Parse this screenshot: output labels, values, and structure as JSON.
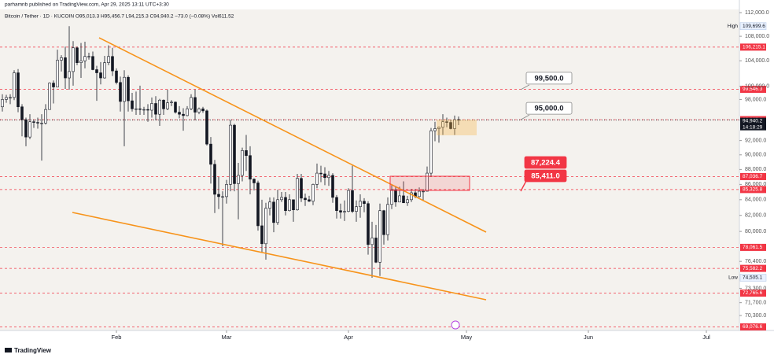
{
  "header": {
    "publisher": "parhamnb published on TradingView.com, Apr 29, 2025 13:11 UTC+3:30",
    "symbol_line": "Bitcoin / Tether · 1D · KUCOIN  O95,013.3 H95,456.7 L94,215.3 C94,940.2 −73.0 (−0.08%) Vol611.52"
  },
  "footer": {
    "brand": "TradingView"
  },
  "chart_data": {
    "type": "candlestick",
    "log_scale": true,
    "up_color": "#ffffff",
    "down_color": "#131722",
    "xlim": [
      -0.6,
      187.4
    ],
    "ylim": [
      68700,
      112550
    ],
    "xticks": [
      {
        "value": 29,
        "label": "Feb"
      },
      {
        "value": 57,
        "label": "Mar"
      },
      {
        "value": 88,
        "label": "Apr"
      },
      {
        "value": 118,
        "label": "May"
      },
      {
        "value": 149,
        "label": "Jun"
      },
      {
        "value": 179,
        "label": "Jul"
      }
    ],
    "yticks": [
      {
        "value": 112000,
        "label": "112,000.0"
      },
      {
        "value": 108000,
        "label": "108,000.0"
      },
      {
        "value": 104000,
        "label": "104,000.0"
      },
      {
        "value": 100000,
        "label": "100,000.0"
      },
      {
        "value": 98000,
        "label": "98,000.0"
      },
      {
        "value": 92000,
        "label": "92,000.0"
      },
      {
        "value": 90000,
        "label": "90,000.0"
      },
      {
        "value": 88000,
        "label": "88,000.0"
      },
      {
        "value": 86000,
        "label": "86,000.0"
      },
      {
        "value": 84000,
        "label": "84,000.0"
      },
      {
        "value": 82000,
        "label": "82,000.0"
      },
      {
        "value": 80000,
        "label": "80,000.0"
      },
      {
        "value": 76400,
        "label": "76,400.0"
      },
      {
        "value": 73300,
        "label": "73,300.0"
      },
      {
        "value": 71700,
        "label": "71,700.0"
      },
      {
        "value": 70300,
        "label": "70,300.0"
      }
    ],
    "high": {
      "name": "High",
      "value": 109699.6,
      "label": "109,699.6"
    },
    "low": {
      "name": "Low",
      "value": 74505.1,
      "label": "74,505.1"
    },
    "price_lines": [
      {
        "value": 106215.1,
        "label": "106,215.1",
        "color": "#f23645"
      },
      {
        "value": 99546.3,
        "label": "99,546.3",
        "color": "#f23645"
      },
      {
        "value": 95007.2,
        "label": "95,007.2",
        "color": "#f23645"
      },
      {
        "value": 87036.7,
        "label": "87,036.7",
        "color": "#f23645"
      },
      {
        "value": 85325.8,
        "label": "85,325.8",
        "color": "#f23645"
      },
      {
        "value": 78061.5,
        "label": "78,061.5",
        "color": "#f23645"
      },
      {
        "value": 75582.2,
        "label": "75,582.2",
        "color": "#f23645"
      },
      {
        "value": 72765.6,
        "label": "72,765.6",
        "color": "#f23645"
      },
      {
        "value": 69076.6,
        "label": "69,076.6",
        "color": "#f23645"
      }
    ],
    "last_price": {
      "value": 94940.2,
      "label": "94,940.2",
      "countdown": "14:18:29",
      "color": "#131722"
    },
    "annotations": [
      {
        "value": 99500,
        "label": "99,500.0",
        "color": "#ffffff"
      },
      {
        "value": 95000,
        "label": "95,000.0",
        "color": "#ffffff"
      },
      {
        "value": 87224.4,
        "label": "87,224.4",
        "color": "#f23645"
      },
      {
        "value": 85411,
        "label": "85,411.0",
        "color": "#f23645"
      }
    ],
    "candles": [
      [
        96900,
        98800,
        96200,
        98000
      ],
      [
        98000,
        98700,
        97500,
        98300
      ],
      [
        98300,
        98800,
        97300,
        98300
      ],
      [
        98300,
        102500,
        97900,
        102100
      ],
      [
        102100,
        102700,
        96100,
        96900
      ],
      [
        96900,
        97300,
        92600,
        95000
      ],
      [
        95000,
        95300,
        91200,
        92500
      ],
      [
        92500,
        95800,
        92200,
        94700
      ],
      [
        94700,
        95000,
        93800,
        94600
      ],
      [
        94600,
        95300,
        93700,
        94500
      ],
      [
        94500,
        95800,
        89200,
        94500
      ],
      [
        94500,
        97300,
        94300,
        96500
      ],
      [
        96500,
        100600,
        96500,
        100500
      ],
      [
        100500,
        100900,
        97400,
        99900
      ],
      [
        99900,
        105800,
        99900,
        104100
      ],
      [
        104100,
        104900,
        102300,
        104500
      ],
      [
        104500,
        106300,
        99600,
        101300
      ],
      [
        101300,
        109700,
        99500,
        102300
      ],
      [
        102300,
        107200,
        100100,
        106100
      ],
      [
        106100,
        106300,
        103300,
        103700
      ],
      [
        103700,
        106900,
        101300,
        104000
      ],
      [
        104000,
        107100,
        102800,
        104700
      ],
      [
        104700,
        105300,
        104200,
        104700
      ],
      [
        104700,
        105500,
        102500,
        102600
      ],
      [
        102600,
        103200,
        97800,
        102100
      ],
      [
        102100,
        103800,
        100300,
        101300
      ],
      [
        101300,
        104800,
        101200,
        103700
      ],
      [
        103700,
        106500,
        103300,
        104700
      ],
      [
        104700,
        106100,
        101600,
        102400
      ],
      [
        102400,
        102800,
        100300,
        100600
      ],
      [
        100600,
        101500,
        96200,
        97700
      ],
      [
        97700,
        102500,
        91200,
        101400
      ],
      [
        101400,
        101700,
        96200,
        97800
      ],
      [
        97800,
        99000,
        96200,
        96600
      ],
      [
        96600,
        99200,
        95700,
        96600
      ],
      [
        96600,
        100100,
        95700,
        96500
      ],
      [
        96500,
        96900,
        95700,
        96500
      ],
      [
        96500,
        97300,
        94700,
        96400
      ],
      [
        96400,
        98300,
        95300,
        97400
      ],
      [
        97400,
        98500,
        94900,
        95800
      ],
      [
        95800,
        98100,
        94100,
        97900
      ],
      [
        97900,
        98000,
        95700,
        96600
      ],
      [
        96600,
        99500,
        96400,
        97500
      ],
      [
        97500,
        97900,
        97000,
        97600
      ],
      [
        97600,
        97700,
        95900,
        96100
      ],
      [
        96100,
        97000,
        95200,
        95800
      ],
      [
        95800,
        96700,
        93400,
        95600
      ],
      [
        95600,
        97000,
        95500,
        96600
      ],
      [
        96600,
        98800,
        96400,
        98300
      ],
      [
        98300,
        99500,
        94900,
        96100
      ],
      [
        96100,
        96800,
        95800,
        96600
      ],
      [
        96600,
        96900,
        96000,
        96300
      ],
      [
        96300,
        96500,
        91300,
        91500
      ],
      [
        91500,
        92500,
        86100,
        88700
      ],
      [
        88700,
        89300,
        82300,
        84700
      ],
      [
        84700,
        87000,
        82800,
        84400
      ],
      [
        84400,
        85100,
        78200,
        84400
      ],
      [
        84400,
        86600,
        83500,
        86000
      ],
      [
        86000,
        95000,
        85100,
        94200
      ],
      [
        94200,
        94400,
        85100,
        86100
      ],
      [
        86100,
        88900,
        81500,
        87200
      ],
      [
        87200,
        91000,
        86400,
        90600
      ],
      [
        90600,
        92800,
        87800,
        89900
      ],
      [
        89900,
        91200,
        84700,
        86700
      ],
      [
        86700,
        86800,
        85200,
        86200
      ],
      [
        86200,
        86500,
        80100,
        80700
      ],
      [
        80700,
        84000,
        77500,
        78500
      ],
      [
        78500,
        83600,
        76600,
        82900
      ],
      [
        82900,
        84300,
        82000,
        83700
      ],
      [
        83700,
        84300,
        79900,
        81100
      ],
      [
        81100,
        85300,
        80800,
        84000
      ],
      [
        84000,
        85000,
        83700,
        84300
      ],
      [
        84300,
        85000,
        82000,
        82600
      ],
      [
        82600,
        84700,
        82500,
        84000
      ],
      [
        84000,
        84000,
        81200,
        82700
      ],
      [
        82700,
        87400,
        82600,
        86800
      ],
      [
        86800,
        87400,
        83700,
        84200
      ],
      [
        84200,
        84800,
        83200,
        84000
      ],
      [
        84000,
        84500,
        83700,
        83800
      ],
      [
        83800,
        86100,
        83300,
        86000
      ],
      [
        86000,
        88800,
        85500,
        87500
      ],
      [
        87500,
        88500,
        86300,
        87400
      ],
      [
        87400,
        88300,
        85900,
        86900
      ],
      [
        86900,
        87800,
        85800,
        87200
      ],
      [
        87200,
        87500,
        83600,
        84300
      ],
      [
        84300,
        84600,
        81600,
        82600
      ],
      [
        82600,
        83500,
        81600,
        82400
      ],
      [
        82400,
        83900,
        81300,
        82500
      ],
      [
        82500,
        85500,
        82400,
        85200
      ],
      [
        85200,
        88500,
        82300,
        82500
      ],
      [
        82500,
        83900,
        81200,
        83100
      ],
      [
        83100,
        84700,
        81700,
        83800
      ],
      [
        83800,
        84200,
        82400,
        83500
      ],
      [
        83500,
        83800,
        77200,
        78400
      ],
      [
        78400,
        81200,
        74500,
        79200
      ],
      [
        79200,
        80800,
        76200,
        76300
      ],
      [
        76300,
        83500,
        74700,
        82600
      ],
      [
        82600,
        82700,
        78400,
        79600
      ],
      [
        79600,
        84300,
        78900,
        83400
      ],
      [
        83400,
        85900,
        82800,
        85300
      ],
      [
        85300,
        85800,
        83100,
        83700
      ],
      [
        83700,
        85700,
        83700,
        84500
      ],
      [
        84500,
        86400,
        83600,
        83600
      ],
      [
        83600,
        84500,
        83200,
        84000
      ],
      [
        84000,
        85400,
        83700,
        84900
      ],
      [
        84900,
        85400,
        84200,
        84400
      ],
      [
        84400,
        85600,
        84300,
        85100
      ],
      [
        85100,
        85400,
        83900,
        85100
      ],
      [
        85100,
        88400,
        85100,
        87500
      ],
      [
        87500,
        93800,
        87000,
        93400
      ],
      [
        93400,
        94700,
        91900,
        93700
      ],
      [
        93700,
        94000,
        91700,
        93900
      ],
      [
        93900,
        95800,
        92800,
        94700
      ],
      [
        94700,
        95300,
        93900,
        94600
      ],
      [
        94600,
        95000,
        93600,
        93700
      ],
      [
        93700,
        95600,
        92800,
        95000
      ],
      [
        95013.3,
        95456.7,
        94215.3,
        94940.2
      ]
    ]
  }
}
